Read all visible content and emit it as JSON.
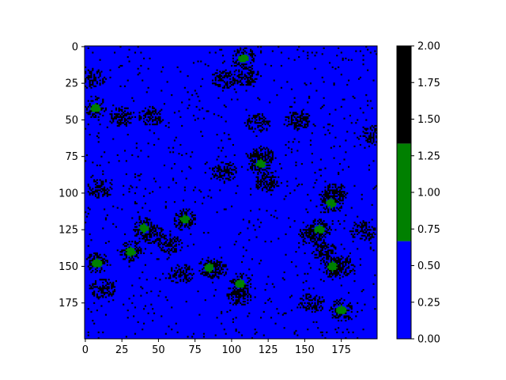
{
  "chart_data": [
    {
      "type": "heatmap",
      "title": "",
      "xlabel": "",
      "ylabel": "",
      "grid_size": [
        200,
        200
      ],
      "xlim": [
        0,
        200
      ],
      "ylim": [
        200,
        0
      ],
      "xticks": [
        0,
        25,
        50,
        75,
        100,
        125,
        150,
        175
      ],
      "yticks": [
        0,
        25,
        50,
        75,
        100,
        125,
        150,
        175
      ],
      "grid": false,
      "categories": [
        {
          "value": 0,
          "color": "#0000ff"
        },
        {
          "value": 1,
          "color": "#008000"
        },
        {
          "value": 2,
          "color": "#000000"
        }
      ],
      "green_clusters": [
        {
          "x": 108,
          "y": 8
        },
        {
          "x": 7,
          "y": 42
        },
        {
          "x": 40,
          "y": 124
        },
        {
          "x": 31,
          "y": 140
        },
        {
          "x": 68,
          "y": 118
        },
        {
          "x": 85,
          "y": 151
        },
        {
          "x": 106,
          "y": 162
        },
        {
          "x": 160,
          "y": 125
        },
        {
          "x": 168,
          "y": 107
        },
        {
          "x": 169,
          "y": 150
        },
        {
          "x": 175,
          "y": 180
        },
        {
          "x": 8,
          "y": 148
        },
        {
          "x": 120,
          "y": 80
        }
      ],
      "black_clusters": [
        {
          "x": 95,
          "y": 22
        },
        {
          "x": 110,
          "y": 20
        },
        {
          "x": 25,
          "y": 48
        },
        {
          "x": 45,
          "y": 47
        },
        {
          "x": 118,
          "y": 52
        },
        {
          "x": 145,
          "y": 50
        },
        {
          "x": 120,
          "y": 75
        },
        {
          "x": 124,
          "y": 92
        },
        {
          "x": 95,
          "y": 85
        },
        {
          "x": 10,
          "y": 97
        },
        {
          "x": 45,
          "y": 128
        },
        {
          "x": 58,
          "y": 135
        },
        {
          "x": 88,
          "y": 152
        },
        {
          "x": 65,
          "y": 155
        },
        {
          "x": 105,
          "y": 170
        },
        {
          "x": 155,
          "y": 128
        },
        {
          "x": 163,
          "y": 140
        },
        {
          "x": 190,
          "y": 126
        },
        {
          "x": 155,
          "y": 175
        },
        {
          "x": 170,
          "y": 100
        },
        {
          "x": 12,
          "y": 165
        },
        {
          "x": 198,
          "y": 60
        },
        {
          "x": 175,
          "y": 150
        },
        {
          "x": 5,
          "y": 22
        }
      ]
    },
    {
      "type": "colorbar",
      "ticks": [
        "0.00",
        "0.25",
        "0.50",
        "0.75",
        "1.00",
        "1.25",
        "1.50",
        "1.75",
        "2.00"
      ],
      "range": [
        0,
        2
      ],
      "bands": [
        {
          "from": 0,
          "to": 0.667,
          "color": "#0000ff"
        },
        {
          "from": 0.667,
          "to": 1.333,
          "color": "#008000"
        },
        {
          "from": 1.333,
          "to": 2,
          "color": "#000000"
        }
      ]
    }
  ]
}
